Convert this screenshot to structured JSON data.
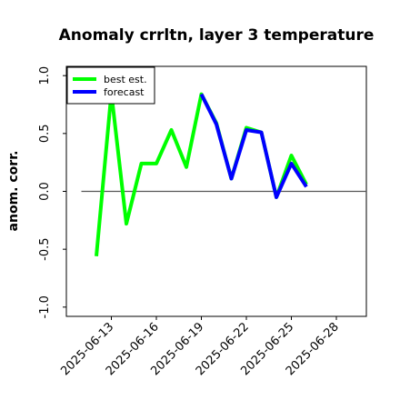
{
  "chart_data": {
    "type": "line",
    "title": "Anomaly crrltn, layer 3 temperature",
    "xlabel": "",
    "ylabel": "anom. corr.",
    "ylim": [
      -1.08,
      1.08
    ],
    "xlim": [
      "2025-06-10",
      "2025-06-30"
    ],
    "yticks": [
      {
        "value": 1.0,
        "label": "1.0"
      },
      {
        "value": 0.5,
        "label": "0.5"
      },
      {
        "value": 0.0,
        "label": "0.0"
      },
      {
        "value": -0.5,
        "label": "-0.5"
      },
      {
        "value": -1.0,
        "label": "-1.0"
      }
    ],
    "xticks": [
      {
        "value": "2025-06-13",
        "label": "2025-06-13",
        "color": "#000000"
      },
      {
        "value": "2025-06-16",
        "label": "2025-06-16",
        "color": "#000000"
      },
      {
        "value": "2025-06-19",
        "label": "2025-06-19",
        "color": "#228B22"
      },
      {
        "value": "2025-06-22",
        "label": "2025-06-22",
        "color": "#000000"
      },
      {
        "value": "2025-06-25",
        "label": "2025-06-25",
        "color": "#000000"
      },
      {
        "value": "2025-06-28",
        "label": "2025-06-28",
        "color": "#000000"
      }
    ],
    "reference_line": {
      "y": 0.0,
      "x_start": "2025-06-11",
      "x_end": "2025-06-30",
      "color": "#555555"
    },
    "legend": {
      "placement": "top-left"
    },
    "grid": false,
    "series": [
      {
        "name": "best est.",
        "color": "#00ff00",
        "points": [
          {
            "x": "2025-06-12",
            "y": -0.56
          },
          {
            "x": "2025-06-13",
            "y": 0.85
          },
          {
            "x": "2025-06-14",
            "y": -0.28
          },
          {
            "x": "2025-06-15",
            "y": 0.24
          },
          {
            "x": "2025-06-16",
            "y": 0.24
          },
          {
            "x": "2025-06-17",
            "y": 0.53
          },
          {
            "x": "2025-06-18",
            "y": 0.21
          },
          {
            "x": "2025-06-19",
            "y": 0.84
          },
          {
            "x": "2025-06-20",
            "y": 0.59
          },
          {
            "x": "2025-06-21",
            "y": 0.11
          },
          {
            "x": "2025-06-22",
            "y": 0.55
          },
          {
            "x": "2025-06-23",
            "y": 0.51
          },
          {
            "x": "2025-06-24",
            "y": -0.05
          },
          {
            "x": "2025-06-25",
            "y": 0.31
          },
          {
            "x": "2025-06-26",
            "y": 0.06
          }
        ]
      },
      {
        "name": "forecast",
        "color": "#0000ff",
        "points": [
          {
            "x": "2025-06-19",
            "y": 0.84
          },
          {
            "x": "2025-06-20",
            "y": 0.58
          },
          {
            "x": "2025-06-21",
            "y": 0.11
          },
          {
            "x": "2025-06-22",
            "y": 0.53
          },
          {
            "x": "2025-06-23",
            "y": 0.51
          },
          {
            "x": "2025-06-24",
            "y": -0.05
          },
          {
            "x": "2025-06-25",
            "y": 0.24
          },
          {
            "x": "2025-06-26",
            "y": 0.04
          }
        ]
      }
    ]
  }
}
